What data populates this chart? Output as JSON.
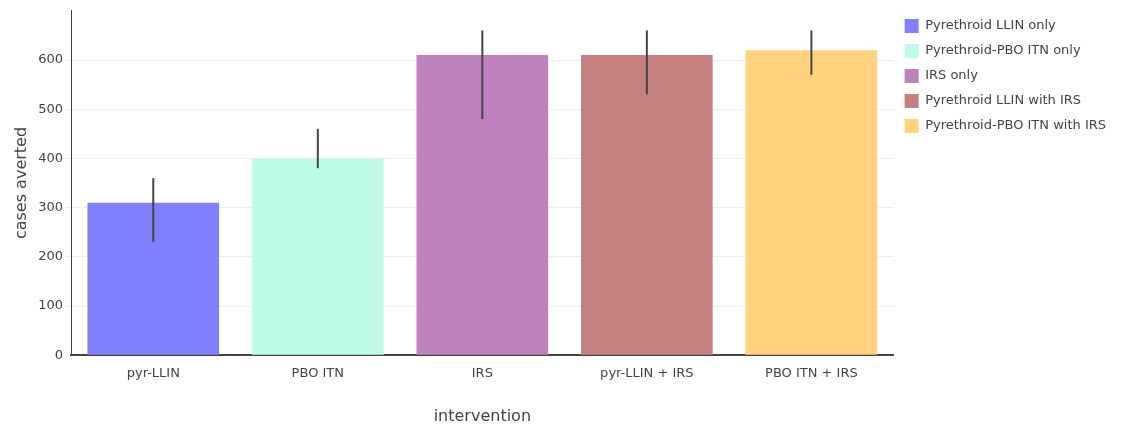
{
  "chart_data": {
    "type": "bar",
    "xlabel": "intervention",
    "ylabel": "cases averted",
    "categories": [
      "pyr-LLIN",
      "PBO ITN",
      "IRS",
      "pyr-LLIN + IRS",
      "PBO ITN + IRS"
    ],
    "series": [
      {
        "name": "Pyrethroid LLIN only",
        "color": "#8080ff",
        "values": [
          310,
          null,
          null,
          null,
          null
        ],
        "errors": [
          [
            230,
            360
          ],
          null,
          null,
          null,
          null
        ]
      },
      {
        "name": "Pyrethroid-PBO ITN only",
        "color": "#bffbe9",
        "values": [
          null,
          400,
          null,
          null,
          null
        ],
        "errors": [
          null,
          [
            380,
            460
          ],
          null,
          null,
          null
        ]
      },
      {
        "name": "IRS only",
        "color": "#bf80bf",
        "values": [
          null,
          null,
          610,
          null,
          null
        ],
        "errors": [
          null,
          null,
          [
            480,
            660
          ],
          null,
          null
        ]
      },
      {
        "name": "Pyrethroid LLIN with IRS",
        "color": "#c58080",
        "values": [
          null,
          null,
          null,
          610,
          null
        ],
        "errors": [
          null,
          null,
          null,
          [
            530,
            660
          ],
          null
        ]
      },
      {
        "name": "Pyrethroid-PBO ITN with IRS",
        "color": "#ffd280",
        "values": [
          null,
          null,
          null,
          null,
          620
        ],
        "errors": [
          null,
          null,
          null,
          null,
          [
            570,
            660
          ]
        ]
      }
    ],
    "ylim": [
      0,
      700
    ],
    "yticks": [
      0,
      100,
      200,
      300,
      400,
      500,
      600
    ],
    "grid": "y",
    "legend": "top right"
  }
}
